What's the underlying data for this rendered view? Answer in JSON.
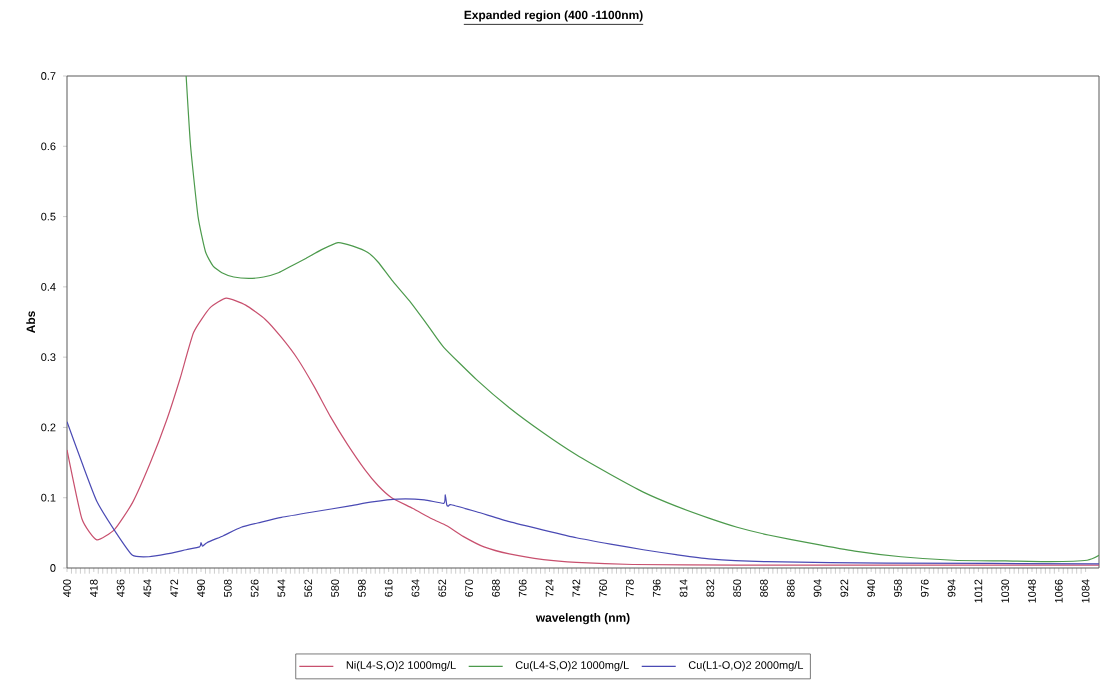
{
  "chart_data": {
    "type": "line",
    "title": "Expanded region (400 -1100nm)",
    "xlabel": "wavelength (nm)",
    "ylabel": "Abs",
    "xlim": [
      400,
      1093
    ],
    "xticks": [
      400,
      418,
      436,
      454,
      472,
      490,
      508,
      526,
      544,
      562,
      580,
      598,
      616,
      634,
      652,
      670,
      688,
      706,
      724,
      742,
      760,
      778,
      796,
      814,
      832,
      850,
      868,
      886,
      904,
      922,
      940,
      958,
      976,
      994,
      1012,
      1030,
      1048,
      1066,
      1084
    ],
    "ylim": [
      0,
      0.7
    ],
    "yticks": [
      0,
      0.1,
      0.2,
      0.3,
      0.4,
      0.5,
      0.6,
      0.7
    ],
    "grid": false,
    "legend": "bottom",
    "marker": "none",
    "line_style": "solid",
    "series": [
      {
        "name": "Ni(L4-S,O)2 1000mg/L",
        "color": "#c8506e",
        "x": [
          400,
          410,
          420,
          432,
          444,
          456,
          467,
          476,
          485,
          496,
          507,
          520,
          533,
          544,
          555,
          566,
          577,
          588,
          600,
          609,
          618,
          632,
          645,
          655,
          666,
          680,
          697,
          720,
          742,
          780,
          850,
          950,
          1093
        ],
        "values": [
          0.168,
          0.07,
          0.04,
          0.055,
          0.093,
          0.15,
          0.211,
          0.27,
          0.335,
          0.37,
          0.384,
          0.374,
          0.354,
          0.328,
          0.297,
          0.258,
          0.215,
          0.177,
          0.14,
          0.117,
          0.1,
          0.085,
          0.07,
          0.06,
          0.045,
          0.03,
          0.02,
          0.012,
          0.008,
          0.005,
          0.004,
          0.004,
          0.004
        ]
      },
      {
        "name": "Cu(L4-S,O)2 1000mg/L",
        "color": "#4c9a4c",
        "x": [
          480,
          483,
          488,
          493,
          498,
          504,
          512,
          522,
          532,
          542,
          551,
          560,
          571,
          582,
          592,
          602,
          609,
          618,
          630,
          642,
          653,
          675,
          697,
          720,
          742,
          765,
          787,
          809,
          831,
          850,
          871,
          900,
          929,
          960,
          995,
          1030,
          1060,
          1085,
          1093
        ],
        "values": [
          0.7,
          0.6,
          0.5,
          0.45,
          0.43,
          0.42,
          0.414,
          0.412,
          0.414,
          0.42,
          0.43,
          0.44,
          0.453,
          0.463,
          0.458,
          0.449,
          0.435,
          0.41,
          0.38,
          0.346,
          0.314,
          0.268,
          0.228,
          0.192,
          0.161,
          0.133,
          0.108,
          0.088,
          0.071,
          0.058,
          0.047,
          0.035,
          0.024,
          0.016,
          0.011,
          0.01,
          0.009,
          0.011,
          0.018
        ]
      },
      {
        "name": "Cu(L1-O,O)2 2000mg/L",
        "color": "#4a4ab4",
        "x": [
          400,
          410,
          420,
          433,
          444,
          455,
          467,
          480,
          489,
          490,
          491,
          494,
          505,
          517,
          530,
          544,
          566,
          589,
          605,
          622,
          640,
          653,
          654,
          655,
          656,
          658,
          675,
          697,
          720,
          742,
          765,
          787,
          809,
          831,
          870,
          950,
          1093
        ],
        "values": [
          0.208,
          0.15,
          0.095,
          0.05,
          0.018,
          0.016,
          0.02,
          0.026,
          0.03,
          0.036,
          0.031,
          0.036,
          0.046,
          0.058,
          0.065,
          0.072,
          0.08,
          0.088,
          0.094,
          0.098,
          0.097,
          0.092,
          0.104,
          0.09,
          0.088,
          0.09,
          0.08,
          0.066,
          0.054,
          0.043,
          0.034,
          0.026,
          0.019,
          0.013,
          0.009,
          0.007,
          0.006
        ]
      }
    ]
  }
}
